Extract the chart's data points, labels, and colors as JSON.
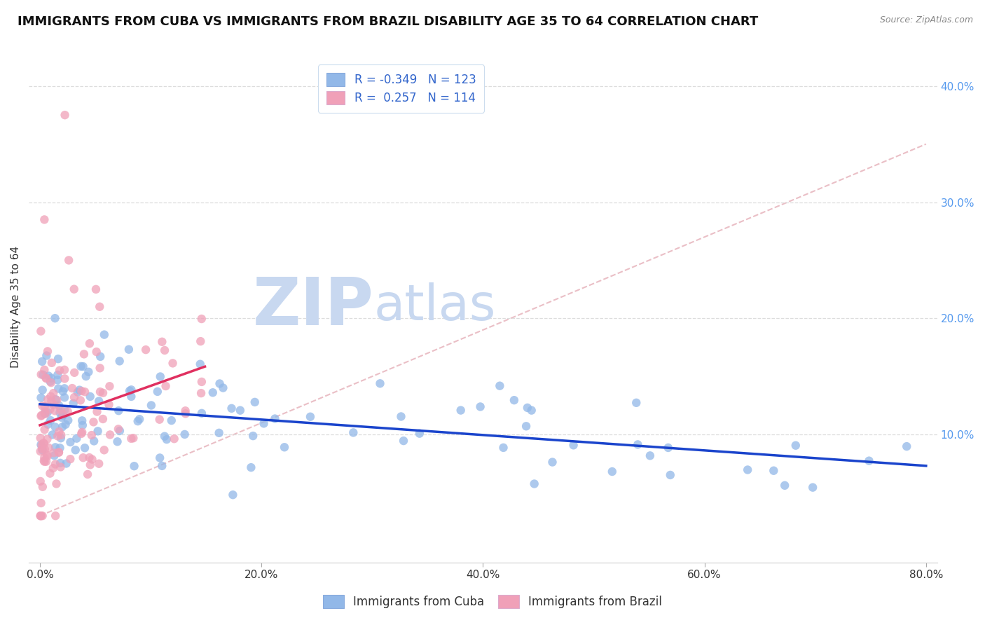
{
  "title": "IMMIGRANTS FROM CUBA VS IMMIGRANTS FROM BRAZIL DISABILITY AGE 35 TO 64 CORRELATION CHART",
  "source": "Source: ZipAtlas.com",
  "ylabel": "Disability Age 35 to 64",
  "x_tick_labels": [
    "0.0%",
    "20.0%",
    "40.0%",
    "60.0%",
    "80.0%"
  ],
  "x_tick_values": [
    0.0,
    20.0,
    40.0,
    60.0,
    80.0
  ],
  "y_tick_labels_right": [
    "10.0%",
    "20.0%",
    "30.0%",
    "40.0%"
  ],
  "y_tick_values": [
    10.0,
    20.0,
    30.0,
    40.0
  ],
  "xlim": [
    -1.0,
    81.0
  ],
  "ylim": [
    -1.0,
    43.0
  ],
  "legend_labels": [
    "Immigrants from Cuba",
    "Immigrants from Brazil"
  ],
  "legend_r_values": [
    "-0.349",
    "0.257"
  ],
  "legend_n_values": [
    "123",
    "114"
  ],
  "blue_color": "#92b8e8",
  "pink_color": "#f0a0b8",
  "blue_line_color": "#1a44cc",
  "pink_line_color": "#e03060",
  "diag_line_color": "#e8b8c0",
  "title_fontsize": 13,
  "axis_label_fontsize": 11,
  "tick_fontsize": 11,
  "watermark_zip": "ZIP",
  "watermark_atlas": "atlas",
  "watermark_color_zip": "#c8d8f0",
  "watermark_color_atlas": "#c8d8f0",
  "background_color": "#ffffff",
  "grid_color": "#dddddd"
}
